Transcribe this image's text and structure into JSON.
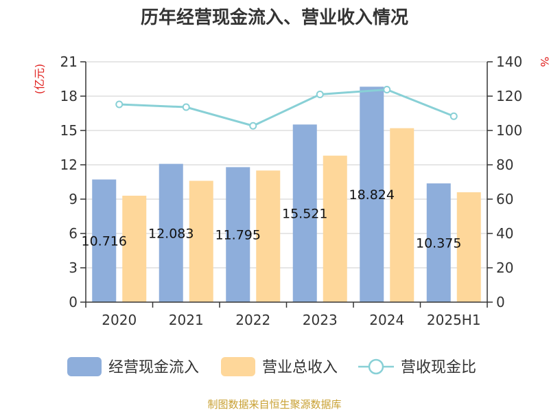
{
  "chart_data": {
    "type": "bar",
    "title": "历年经营现金流入、营业收入情况",
    "categories": [
      "2020",
      "2021",
      "2022",
      "2023",
      "2024",
      "2025H1"
    ],
    "y_left": {
      "unit": "(亿元)",
      "range": [
        0,
        21
      ],
      "ticks": [
        "0",
        "3",
        "6",
        "9",
        "12",
        "15",
        "18",
        "21"
      ]
    },
    "y_right": {
      "unit": "%",
      "range": [
        0,
        140
      ],
      "ticks": [
        "0",
        "20",
        "40",
        "60",
        "80",
        "100",
        "120",
        "140"
      ]
    },
    "series": [
      {
        "name": "经营现金流入",
        "type": "bar",
        "axis": "left",
        "color": "#8eaedb",
        "values": [
          10.716,
          12.083,
          11.795,
          15.521,
          18.824,
          10.375
        ],
        "labels": [
          "10.716",
          "12.083",
          "11.795",
          "15.521",
          "18.824",
          "10.375"
        ]
      },
      {
        "name": "营业总收入",
        "type": "bar",
        "axis": "left",
        "color": "#fed79a",
        "values": [
          9.3,
          10.6,
          11.5,
          12.8,
          15.2,
          9.6
        ]
      },
      {
        "name": "营收现金比",
        "type": "line",
        "axis": "right",
        "color": "#88d0d6",
        "values": [
          115.2,
          113.6,
          102.7,
          121.0,
          123.8,
          108.3
        ]
      }
    ],
    "grid": true,
    "legend_position": "bottom"
  },
  "source_text": "制图数据来自恒生聚源数据库"
}
